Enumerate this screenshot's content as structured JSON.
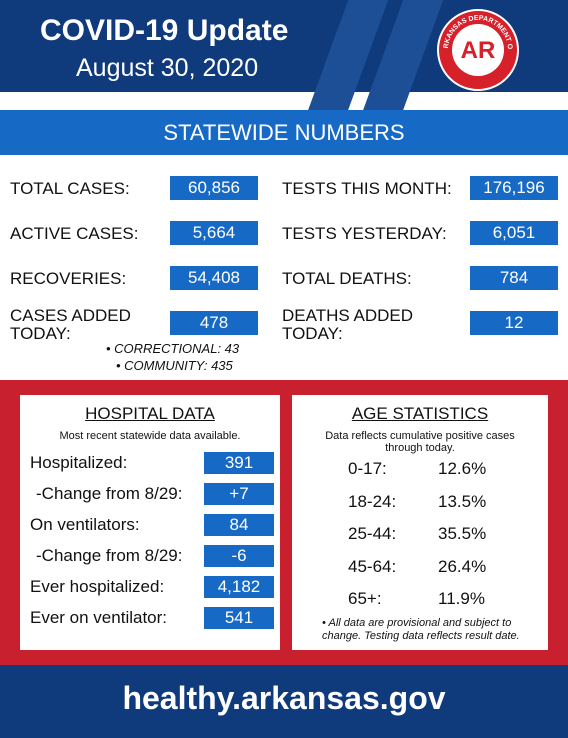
{
  "header": {
    "title": "COVID-19 Update",
    "date": "August 30, 2020",
    "logo": {
      "ring_top": "ARKANSAS DEPARTMENT OF",
      "ring_bottom": "HEALTH",
      "mark": "AR"
    }
  },
  "statewide": {
    "title": "STATEWIDE NUMBERS",
    "left": [
      {
        "label": "TOTAL CASES:",
        "value": "60,856"
      },
      {
        "label": "ACTIVE CASES:",
        "value": "5,664"
      },
      {
        "label": "RECOVERIES:",
        "value": "54,408"
      },
      {
        "label": "CASES ADDED TODAY:",
        "value": "478"
      }
    ],
    "right": [
      {
        "label": "TESTS THIS MONTH:",
        "value": "176,196"
      },
      {
        "label": "TESTS YESTERDAY:",
        "value": "6,051"
      },
      {
        "label": "TOTAL DEATHS:",
        "value": "784"
      },
      {
        "label": "DEATHS ADDED TODAY:",
        "value": "12"
      }
    ],
    "notes": [
      "• CORRECTIONAL: 43",
      "• COMMUNITY: 435"
    ]
  },
  "hospital": {
    "title": "HOSPITAL DATA",
    "subtitle": "Most recent statewide data available.",
    "rows": [
      {
        "label": "Hospitalized:",
        "value": "391"
      },
      {
        "label": "-Change from 8/29:",
        "value": "+7"
      },
      {
        "label": "On ventilators:",
        "value": "84"
      },
      {
        "label": "-Change from 8/29:",
        "value": "-6"
      },
      {
        "label": "Ever hospitalized:",
        "value": "4,182"
      },
      {
        "label": "Ever on ventilator:",
        "value": "541"
      }
    ]
  },
  "age": {
    "title": "AGE STATISTICS",
    "subtitle": "Data reflects cumulative positive cases through today.",
    "rows": [
      {
        "range": "0-17:",
        "pct": "12.6%"
      },
      {
        "range": "18-24:",
        "pct": "13.5%"
      },
      {
        "range": "25-44:",
        "pct": "35.5%"
      },
      {
        "range": "45-64:",
        "pct": "26.4%"
      },
      {
        "range": "65+:",
        "pct": "11.9%"
      }
    ],
    "footnote": "• All data are provisional and subject to change. Testing data reflects result date."
  },
  "footer": {
    "url": "healthy.arkansas.gov"
  }
}
